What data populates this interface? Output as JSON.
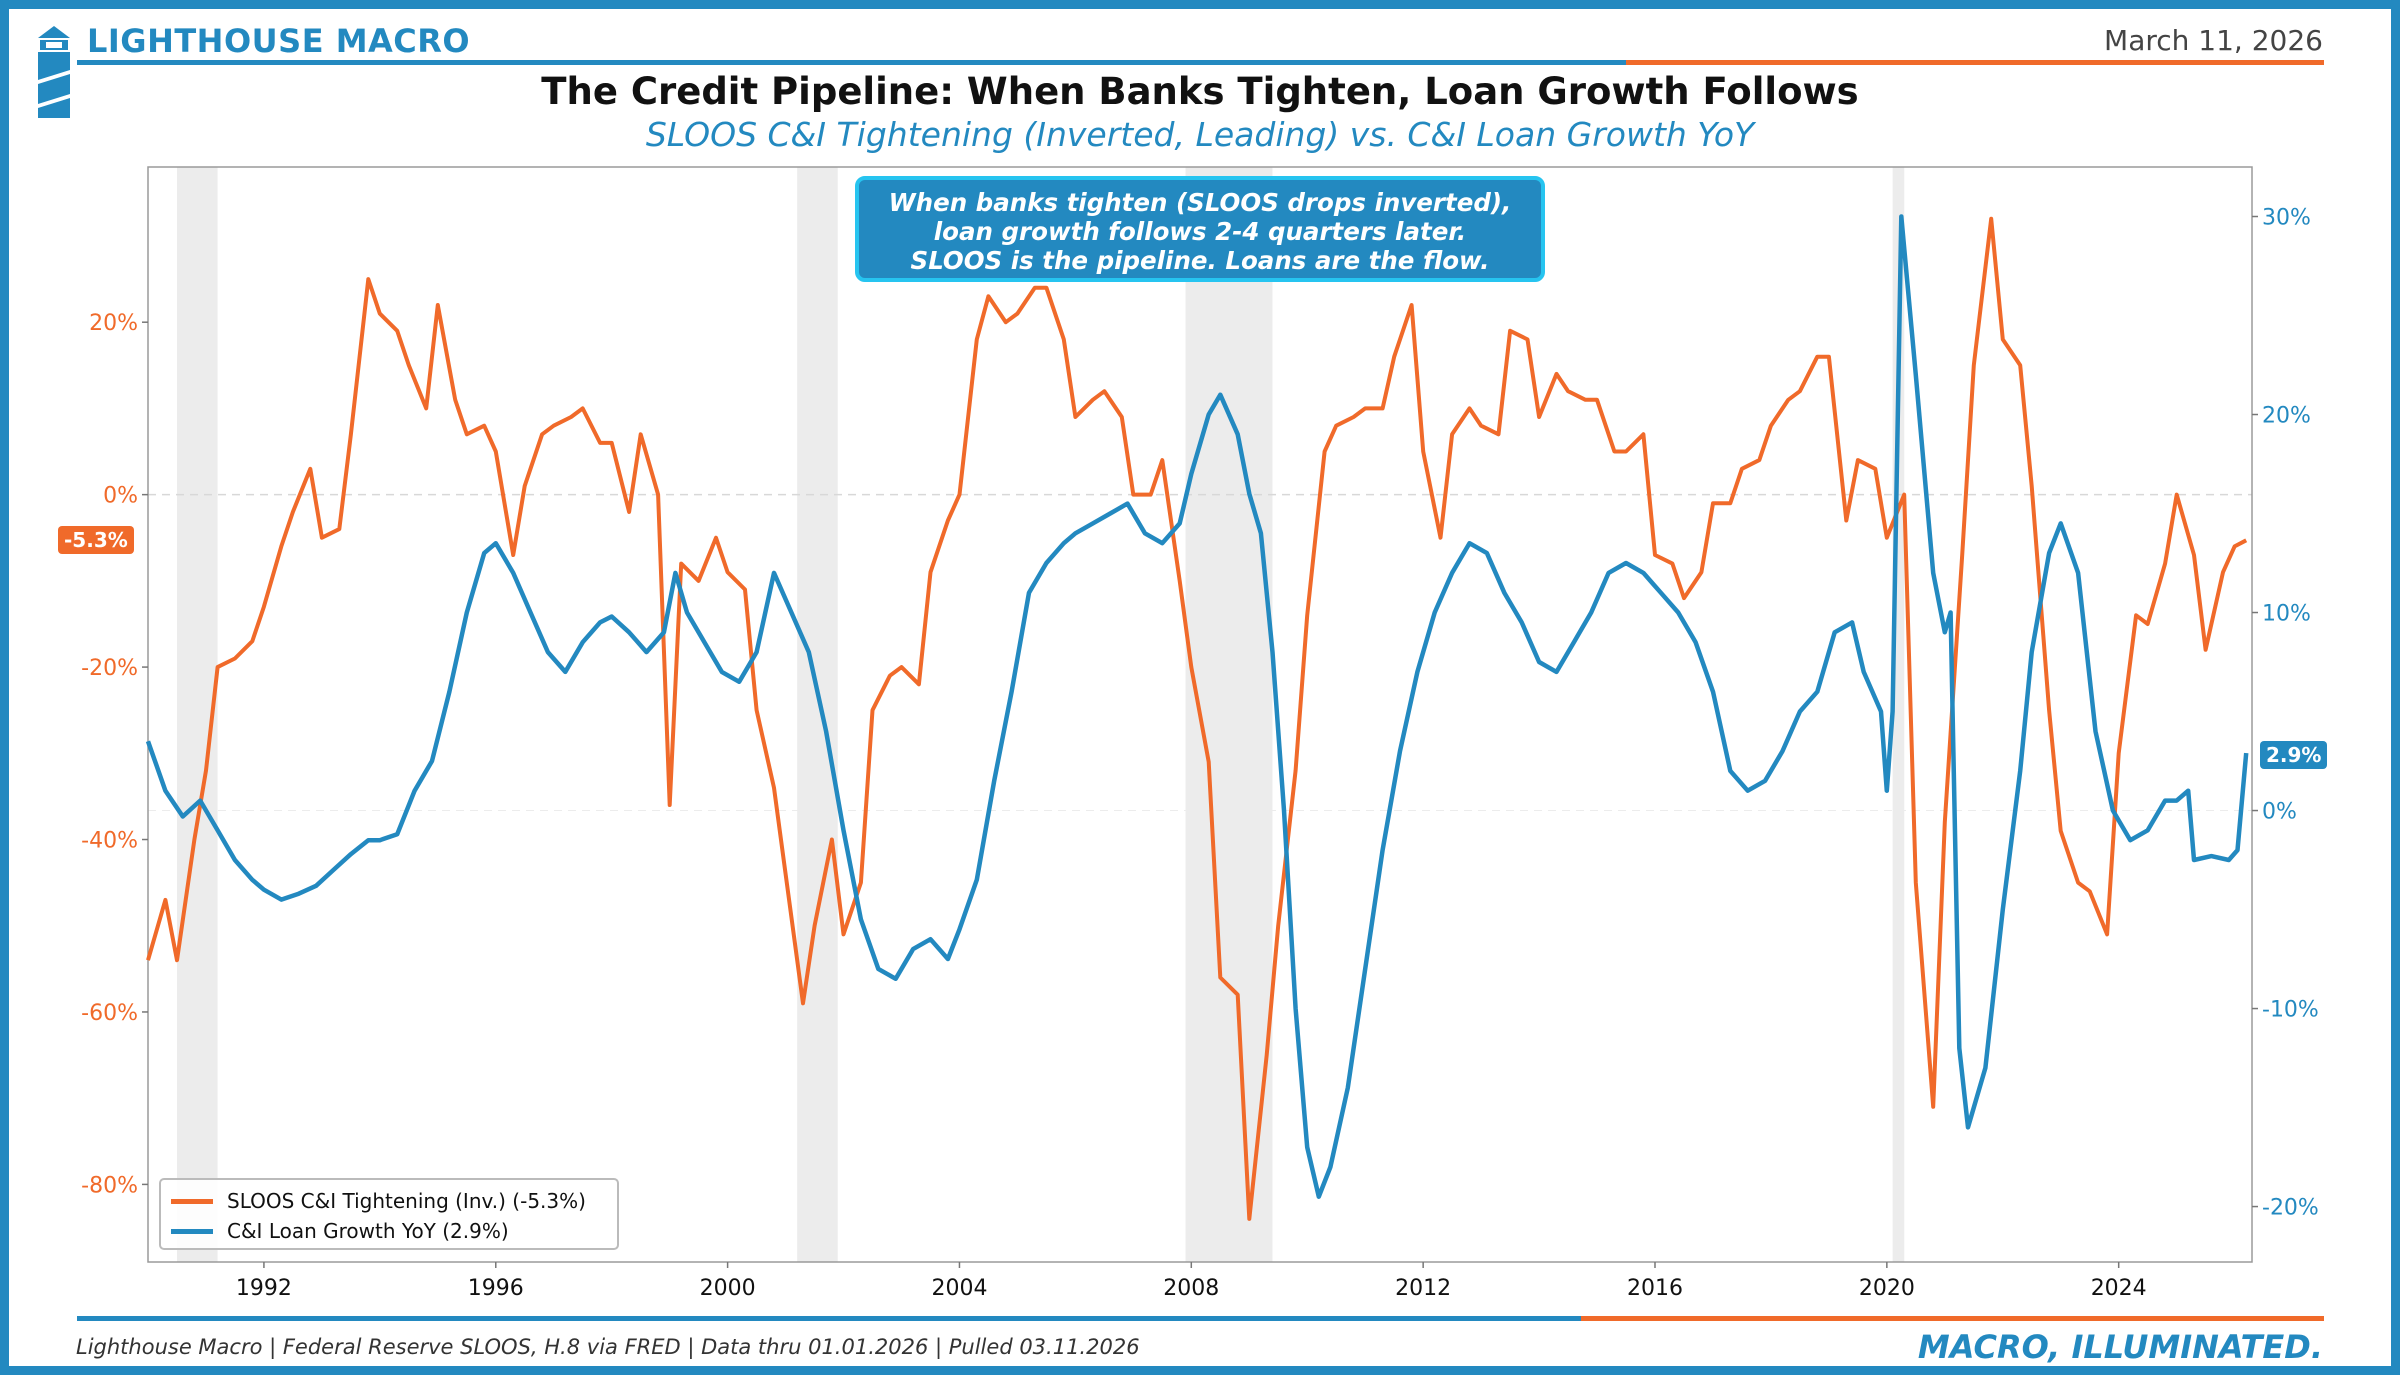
{
  "header": {
    "brand": "LIGHTHOUSE MACRO",
    "date": "March 11, 2026"
  },
  "title": "The Credit Pipeline: When Banks Tighten, Loan Growth Follows",
  "subtitle": "SLOOS C&I Tightening (Inverted, Leading) vs. C&I Loan Growth YoY",
  "callout": {
    "line1": "When banks tighten (SLOOS drops inverted),",
    "line2": "loan growth follows 2-4 quarters later.",
    "line3": "SLOOS is the pipeline. Loans are the flow."
  },
  "legend": {
    "sloos": "SLOOS C&I Tightening (Inv.) (-5.3%)",
    "loans": "C&I Loan Growth YoY (2.9%)"
  },
  "badges": {
    "sloos_last": "-5.3%",
    "loans_last": "2.9%"
  },
  "footer": {
    "source": "Lighthouse Macro | Federal Reserve SLOOS, H.8 via FRED | Data thru 01.01.2026 | Pulled 03.11.2026",
    "tagline": "MACRO, ILLUMINATED."
  },
  "colors": {
    "orange": "#f06a2a",
    "blue": "#2389c0",
    "recession": "#ececec"
  },
  "chart_data": {
    "type": "line",
    "x_ticks": [
      "1992",
      "1996",
      "2000",
      "2004",
      "2008",
      "2012",
      "2016",
      "2020",
      "2024"
    ],
    "xlim": [
      1990.0,
      2026.3
    ],
    "left_axis": {
      "ticks": [
        "20%",
        "0%",
        "-20%",
        "-40%",
        "-60%",
        "-80%"
      ],
      "ylim": [
        -89,
        38
      ]
    },
    "right_axis": {
      "ticks": [
        "30%",
        "20%",
        "10%",
        "0%",
        "-10%",
        "-20%"
      ],
      "ylim": [
        -22.8,
        32.5
      ]
    },
    "grid": "horizontal dashed at 0",
    "legend_position": "bottom-left",
    "recessions": [
      [
        1990.5,
        1991.2
      ],
      [
        2001.2,
        2001.9
      ],
      [
        2007.9,
        2009.4
      ],
      [
        2020.1,
        2020.3
      ]
    ],
    "series": [
      {
        "name": "SLOOS C&I Tightening (Inv.) (-5.3%)",
        "axis": "left",
        "points": [
          [
            1990.0,
            -54
          ],
          [
            1990.3,
            -47
          ],
          [
            1990.5,
            -54
          ],
          [
            1990.8,
            -40
          ],
          [
            1991.0,
            -32
          ],
          [
            1991.2,
            -20
          ],
          [
            1991.5,
            -19
          ],
          [
            1991.8,
            -17
          ],
          [
            1992.0,
            -13
          ],
          [
            1992.3,
            -6
          ],
          [
            1992.5,
            -2
          ],
          [
            1992.8,
            3
          ],
          [
            1993.0,
            -5
          ],
          [
            1993.3,
            -4
          ],
          [
            1993.5,
            7
          ],
          [
            1993.8,
            25
          ],
          [
            1994.0,
            21
          ],
          [
            1994.3,
            19
          ],
          [
            1994.5,
            15
          ],
          [
            1994.8,
            10
          ],
          [
            1995.0,
            22
          ],
          [
            1995.3,
            11
          ],
          [
            1995.5,
            7
          ],
          [
            1995.8,
            8
          ],
          [
            1996.0,
            5
          ],
          [
            1996.3,
            -7
          ],
          [
            1996.5,
            1
          ],
          [
            1996.8,
            7
          ],
          [
            1997.0,
            8
          ],
          [
            1997.3,
            9
          ],
          [
            1997.5,
            10
          ],
          [
            1997.8,
            6
          ],
          [
            1998.0,
            6
          ],
          [
            1998.3,
            -2
          ],
          [
            1998.5,
            7
          ],
          [
            1998.8,
            0
          ],
          [
            1999.0,
            -36
          ],
          [
            1999.2,
            -8
          ],
          [
            1999.5,
            -10
          ],
          [
            1999.8,
            -5
          ],
          [
            2000.0,
            -9
          ],
          [
            2000.3,
            -11
          ],
          [
            2000.5,
            -25
          ],
          [
            2000.8,
            -34
          ],
          [
            2001.0,
            -44
          ],
          [
            2001.3,
            -59
          ],
          [
            2001.5,
            -50
          ],
          [
            2001.8,
            -40
          ],
          [
            2002.0,
            -51
          ],
          [
            2002.3,
            -45
          ],
          [
            2002.5,
            -25
          ],
          [
            2002.8,
            -21
          ],
          [
            2003.0,
            -20
          ],
          [
            2003.3,
            -22
          ],
          [
            2003.5,
            -9
          ],
          [
            2003.8,
            -3
          ],
          [
            2004.0,
            0
          ],
          [
            2004.3,
            18
          ],
          [
            2004.5,
            23
          ],
          [
            2004.8,
            20
          ],
          [
            2005.0,
            21
          ],
          [
            2005.3,
            24
          ],
          [
            2005.5,
            24
          ],
          [
            2005.8,
            18
          ],
          [
            2006.0,
            9
          ],
          [
            2006.3,
            11
          ],
          [
            2006.5,
            12
          ],
          [
            2006.8,
            9
          ],
          [
            2007.0,
            0
          ],
          [
            2007.3,
            0
          ],
          [
            2007.5,
            4
          ],
          [
            2007.8,
            -10
          ],
          [
            2008.0,
            -20
          ],
          [
            2008.3,
            -31
          ],
          [
            2008.5,
            -56
          ],
          [
            2008.8,
            -58
          ],
          [
            2009.0,
            -84
          ],
          [
            2009.3,
            -65
          ],
          [
            2009.5,
            -50
          ],
          [
            2009.8,
            -32
          ],
          [
            2010.0,
            -14
          ],
          [
            2010.3,
            5
          ],
          [
            2010.5,
            8
          ],
          [
            2010.8,
            9
          ],
          [
            2011.0,
            10
          ],
          [
            2011.3,
            10
          ],
          [
            2011.5,
            16
          ],
          [
            2011.8,
            22
          ],
          [
            2012.0,
            5
          ],
          [
            2012.3,
            -5
          ],
          [
            2012.5,
            7
          ],
          [
            2012.8,
            10
          ],
          [
            2013.0,
            8
          ],
          [
            2013.3,
            7
          ],
          [
            2013.5,
            19
          ],
          [
            2013.8,
            18
          ],
          [
            2014.0,
            9
          ],
          [
            2014.3,
            14
          ],
          [
            2014.5,
            12
          ],
          [
            2014.8,
            11
          ],
          [
            2015.0,
            11
          ],
          [
            2015.3,
            5
          ],
          [
            2015.5,
            5
          ],
          [
            2015.8,
            7
          ],
          [
            2016.0,
            -7
          ],
          [
            2016.3,
            -8
          ],
          [
            2016.5,
            -12
          ],
          [
            2016.8,
            -9
          ],
          [
            2017.0,
            -1
          ],
          [
            2017.3,
            -1
          ],
          [
            2017.5,
            3
          ],
          [
            2017.8,
            4
          ],
          [
            2018.0,
            8
          ],
          [
            2018.3,
            11
          ],
          [
            2018.5,
            12
          ],
          [
            2018.8,
            16
          ],
          [
            2019.0,
            16
          ],
          [
            2019.3,
            -3
          ],
          [
            2019.5,
            4
          ],
          [
            2019.8,
            3
          ],
          [
            2020.0,
            -5
          ],
          [
            2020.3,
            0
          ],
          [
            2020.5,
            -45
          ],
          [
            2020.8,
            -71
          ],
          [
            2021.0,
            -38
          ],
          [
            2021.3,
            -7
          ],
          [
            2021.5,
            15
          ],
          [
            2021.8,
            32
          ],
          [
            2022.0,
            18
          ],
          [
            2022.3,
            15
          ],
          [
            2022.5,
            1
          ],
          [
            2022.8,
            -25
          ],
          [
            2023.0,
            -39
          ],
          [
            2023.3,
            -45
          ],
          [
            2023.5,
            -46
          ],
          [
            2023.8,
            -51
          ],
          [
            2024.0,
            -30
          ],
          [
            2024.3,
            -14
          ],
          [
            2024.5,
            -15
          ],
          [
            2024.8,
            -8
          ],
          [
            2025.0,
            0
          ],
          [
            2025.3,
            -7
          ],
          [
            2025.5,
            -18
          ],
          [
            2025.8,
            -9
          ],
          [
            2026.0,
            -6
          ],
          [
            2026.2,
            -5.3
          ]
        ]
      },
      {
        "name": "C&I Loan Growth YoY (2.9%)",
        "axis": "right",
        "points": [
          [
            1990.0,
            3.5
          ],
          [
            1990.3,
            1.0
          ],
          [
            1990.6,
            -0.3
          ],
          [
            1990.9,
            0.5
          ],
          [
            1991.2,
            -1.0
          ],
          [
            1991.5,
            -2.5
          ],
          [
            1991.8,
            -3.5
          ],
          [
            1992.0,
            -4.0
          ],
          [
            1992.3,
            -4.5
          ],
          [
            1992.6,
            -4.2
          ],
          [
            1992.9,
            -3.8
          ],
          [
            1993.2,
            -3.0
          ],
          [
            1993.5,
            -2.2
          ],
          [
            1993.8,
            -1.5
          ],
          [
            1994.0,
            -1.5
          ],
          [
            1994.3,
            -1.2
          ],
          [
            1994.6,
            1.0
          ],
          [
            1994.9,
            2.5
          ],
          [
            1995.2,
            6.0
          ],
          [
            1995.5,
            10.0
          ],
          [
            1995.8,
            13.0
          ],
          [
            1996.0,
            13.5
          ],
          [
            1996.3,
            12.0
          ],
          [
            1996.6,
            10.0
          ],
          [
            1996.9,
            8.0
          ],
          [
            1997.2,
            7.0
          ],
          [
            1997.5,
            8.5
          ],
          [
            1997.8,
            9.5
          ],
          [
            1998.0,
            9.8
          ],
          [
            1998.3,
            9.0
          ],
          [
            1998.6,
            8.0
          ],
          [
            1998.9,
            9.0
          ],
          [
            1999.1,
            12.0
          ],
          [
            1999.3,
            10.0
          ],
          [
            1999.6,
            8.5
          ],
          [
            1999.9,
            7.0
          ],
          [
            2000.2,
            6.5
          ],
          [
            2000.5,
            8.0
          ],
          [
            2000.8,
            12.0
          ],
          [
            2001.1,
            10.0
          ],
          [
            2001.4,
            8.0
          ],
          [
            2001.7,
            4.0
          ],
          [
            2002.0,
            -1.0
          ],
          [
            2002.3,
            -5.5
          ],
          [
            2002.6,
            -8.0
          ],
          [
            2002.9,
            -8.5
          ],
          [
            2003.2,
            -7.0
          ],
          [
            2003.5,
            -6.5
          ],
          [
            2003.8,
            -7.5
          ],
          [
            2004.0,
            -6.0
          ],
          [
            2004.3,
            -3.5
          ],
          [
            2004.6,
            1.5
          ],
          [
            2004.9,
            6.0
          ],
          [
            2005.2,
            11.0
          ],
          [
            2005.5,
            12.5
          ],
          [
            2005.8,
            13.5
          ],
          [
            2006.0,
            14.0
          ],
          [
            2006.3,
            14.5
          ],
          [
            2006.6,
            15.0
          ],
          [
            2006.9,
            15.5
          ],
          [
            2007.2,
            14.0
          ],
          [
            2007.5,
            13.5
          ],
          [
            2007.8,
            14.5
          ],
          [
            2008.0,
            17.0
          ],
          [
            2008.3,
            20.0
          ],
          [
            2008.5,
            21.0
          ],
          [
            2008.8,
            19.0
          ],
          [
            2009.0,
            16.0
          ],
          [
            2009.2,
            14.0
          ],
          [
            2009.4,
            8.0
          ],
          [
            2009.6,
            0.0
          ],
          [
            2009.8,
            -10.0
          ],
          [
            2010.0,
            -17.0
          ],
          [
            2010.2,
            -19.5
          ],
          [
            2010.4,
            -18.0
          ],
          [
            2010.7,
            -14.0
          ],
          [
            2011.0,
            -8.0
          ],
          [
            2011.3,
            -2.0
          ],
          [
            2011.6,
            3.0
          ],
          [
            2011.9,
            7.0
          ],
          [
            2012.2,
            10.0
          ],
          [
            2012.5,
            12.0
          ],
          [
            2012.8,
            13.5
          ],
          [
            2013.1,
            13.0
          ],
          [
            2013.4,
            11.0
          ],
          [
            2013.7,
            9.5
          ],
          [
            2014.0,
            7.5
          ],
          [
            2014.3,
            7.0
          ],
          [
            2014.6,
            8.5
          ],
          [
            2014.9,
            10.0
          ],
          [
            2015.2,
            12.0
          ],
          [
            2015.5,
            12.5
          ],
          [
            2015.8,
            12.0
          ],
          [
            2016.1,
            11.0
          ],
          [
            2016.4,
            10.0
          ],
          [
            2016.7,
            8.5
          ],
          [
            2017.0,
            6.0
          ],
          [
            2017.3,
            2.0
          ],
          [
            2017.6,
            1.0
          ],
          [
            2017.9,
            1.5
          ],
          [
            2018.2,
            3.0
          ],
          [
            2018.5,
            5.0
          ],
          [
            2018.8,
            6.0
          ],
          [
            2019.1,
            9.0
          ],
          [
            2019.4,
            9.5
          ],
          [
            2019.6,
            7.0
          ],
          [
            2019.9,
            5.0
          ],
          [
            2020.0,
            1.0
          ],
          [
            2020.1,
            5.0
          ],
          [
            2020.25,
            30.0
          ],
          [
            2020.5,
            22.0
          ],
          [
            2020.8,
            12.0
          ],
          [
            2021.0,
            9.0
          ],
          [
            2021.1,
            10.0
          ],
          [
            2021.25,
            -12.0
          ],
          [
            2021.4,
            -16.0
          ],
          [
            2021.7,
            -13.0
          ],
          [
            2022.0,
            -5.0
          ],
          [
            2022.3,
            2.0
          ],
          [
            2022.5,
            8.0
          ],
          [
            2022.8,
            13.0
          ],
          [
            2023.0,
            14.5
          ],
          [
            2023.3,
            12.0
          ],
          [
            2023.6,
            4.0
          ],
          [
            2023.9,
            0.0
          ],
          [
            2024.2,
            -1.5
          ],
          [
            2024.5,
            -1.0
          ],
          [
            2024.8,
            0.5
          ],
          [
            2025.0,
            0.5
          ],
          [
            2025.2,
            1.0
          ],
          [
            2025.3,
            -2.5
          ],
          [
            2025.6,
            -2.3
          ],
          [
            2025.9,
            -2.5
          ],
          [
            2026.05,
            -2.0
          ],
          [
            2026.2,
            2.9
          ]
        ]
      }
    ]
  }
}
